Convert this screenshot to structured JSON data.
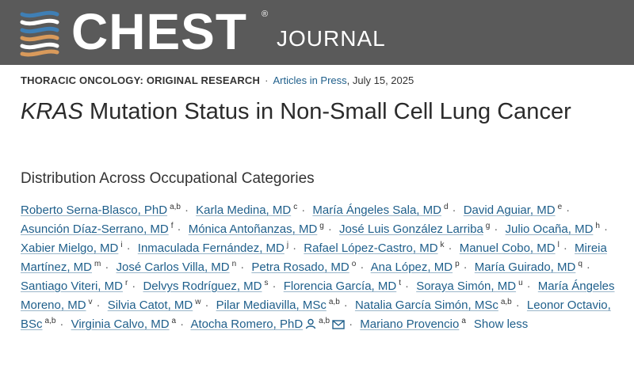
{
  "header": {
    "logo_text": "CHEST",
    "logo_reg": "®",
    "journal_text": "JOURNAL",
    "colors": {
      "banner": "#5a5a5a",
      "helix_blue": "#3f7fb5",
      "helix_orange": "#d99a5b"
    }
  },
  "meta": {
    "category": "THORACIC ONCOLOGY: ORIGINAL RESEARCH",
    "separator": "·",
    "articles_link": "Articles in Press",
    "date": ", July 15, 2025"
  },
  "article": {
    "title_italic": "KRAS",
    "title_rest": " Mutation Status in Non-Small Cell Lung Cancer",
    "subtitle": "Distribution Across Occupational Categories"
  },
  "authors": [
    {
      "name": "Roberto Serna-Blasco, PhD",
      "sup": "a,b"
    },
    {
      "name": "Karla Medina, MD",
      "sup": "c"
    },
    {
      "name": "María Ángeles Sala, MD",
      "sup": "d"
    },
    {
      "name": "David Aguiar, MD",
      "sup": "e"
    },
    {
      "name": "Asunción Díaz-Serrano, MD",
      "sup": "f"
    },
    {
      "name": "Mónica Antoñanzas, MD",
      "sup": "g"
    },
    {
      "name": "José Luis González Larriba",
      "sup": "g"
    },
    {
      "name": "Julio Ocaña, MD",
      "sup": "h"
    },
    {
      "name": "Xabier Mielgo, MD",
      "sup": "i"
    },
    {
      "name": "Inmaculada Fernández, MD",
      "sup": "j"
    },
    {
      "name": "Rafael López-Castro, MD",
      "sup": "k"
    },
    {
      "name": "Manuel Cobo, MD",
      "sup": "l"
    },
    {
      "name": "Mireia Martínez, MD",
      "sup": "m"
    },
    {
      "name": "José Carlos Villa, MD",
      "sup": "n"
    },
    {
      "name": "Petra Rosado, MD",
      "sup": "o"
    },
    {
      "name": "Ana López, MD",
      "sup": "p"
    },
    {
      "name": "María Guirado, MD",
      "sup": "q"
    },
    {
      "name": "Santiago Viteri, MD",
      "sup": "r"
    },
    {
      "name": "Delvys Rodríguez, MD",
      "sup": "s"
    },
    {
      "name": "Florencia García, MD",
      "sup": "t"
    },
    {
      "name": "Soraya Simón, MD",
      "sup": "u"
    },
    {
      "name": "María Ángeles Moreno, MD",
      "sup": "v"
    },
    {
      "name": "Silvia Catot, MD",
      "sup": "w"
    },
    {
      "name": "Pilar Mediavilla, MSc",
      "sup": "a,b"
    },
    {
      "name": "Natalia García Simón, MSc",
      "sup": "a,b"
    },
    {
      "name": "Leonor Octavio, BSc",
      "sup": "a,b"
    },
    {
      "name": "Virginia Calvo, MD",
      "sup": "a"
    },
    {
      "name": "Atocha Romero, PhD",
      "sup": "a,b",
      "icons": [
        "person-icon",
        "email-icon"
      ]
    },
    {
      "name": "Mariano Provencio",
      "sup": "a"
    }
  ],
  "author_separator": "·",
  "show_less_label": "Show less"
}
